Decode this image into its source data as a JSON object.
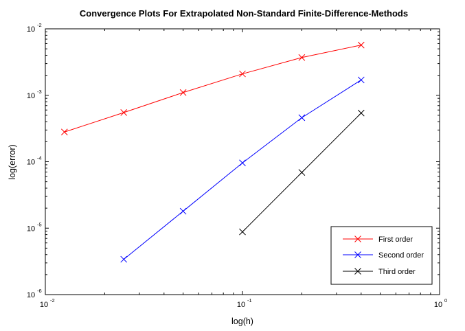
{
  "chart_data": {
    "type": "line",
    "title": "Convergence Plots For Extrapolated Non-Standard Finite-Difference-Methods",
    "xlabel": "log(h)",
    "ylabel": "log(error)",
    "xscale": "log",
    "yscale": "log",
    "xlim": [
      0.01,
      1
    ],
    "ylim": [
      1e-06,
      0.01
    ],
    "x_ticks": [
      {
        "base": "10",
        "exp": "-2",
        "value": 0.01
      },
      {
        "base": "10",
        "exp": "-1",
        "value": 0.1
      },
      {
        "base": "10",
        "exp": "0",
        "value": 1
      }
    ],
    "y_ticks": [
      {
        "base": "10",
        "exp": "-6",
        "value": 1e-06
      },
      {
        "base": "10",
        "exp": "-5",
        "value": 1e-05
      },
      {
        "base": "10",
        "exp": "-4",
        "value": 0.0001
      },
      {
        "base": "10",
        "exp": "-3",
        "value": 0.001
      },
      {
        "base": "10",
        "exp": "-2",
        "value": 0.01
      }
    ],
    "legend_position": "bottom-right",
    "marker": "x",
    "series": [
      {
        "name": "First order",
        "color": "#ff0000",
        "x": [
          0.0125,
          0.025,
          0.05,
          0.1,
          0.2,
          0.4
        ],
        "y": [
          0.00028,
          0.00055,
          0.0011,
          0.0021,
          0.0037,
          0.0057
        ]
      },
      {
        "name": "Second order",
        "color": "#0000ff",
        "x": [
          0.025,
          0.05,
          0.1,
          0.2,
          0.4
        ],
        "y": [
          3.4e-06,
          1.8e-05,
          9.6e-05,
          0.00046,
          0.0017
        ]
      },
      {
        "name": "Third order",
        "color": "#000000",
        "x": [
          0.1,
          0.2,
          0.4
        ],
        "y": [
          8.8e-06,
          6.9e-05,
          0.00054
        ]
      }
    ]
  }
}
